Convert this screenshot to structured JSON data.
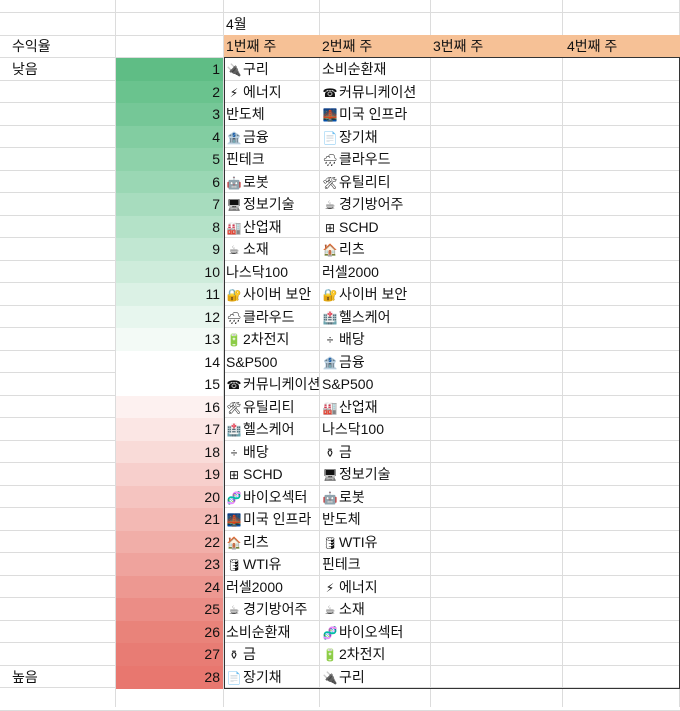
{
  "month_label": "4월",
  "return_label": "수익율",
  "low_label": "낮음",
  "high_label": "높음",
  "week_headers": [
    "1번째 주",
    "2번째 주",
    "3번째 주",
    "4번째 주"
  ],
  "colors": {
    "header_orange": "#f6c196",
    "gradient_top": "#5fbd85",
    "gradient_bottom": "#e8776f"
  },
  "ranks": [
    {
      "rank": 1,
      "color": "#5fbd85",
      "w1": {
        "icon": "🔌",
        "text": "구리"
      },
      "w2": {
        "icon": "",
        "text": "소비순환재"
      }
    },
    {
      "rank": 2,
      "color": "#6ac38e",
      "w1": {
        "icon": "⚡",
        "text": "에너지"
      },
      "w2": {
        "icon": "☎",
        "text": "커뮤니케이션"
      }
    },
    {
      "rank": 3,
      "color": "#75c797",
      "w1": {
        "icon": "",
        "text": "반도체"
      },
      "w2": {
        "icon": "🌉",
        "text": "미국 인프라"
      }
    },
    {
      "rank": 4,
      "color": "#82cda1",
      "w1": {
        "icon": "🏦",
        "text": "금융"
      },
      "w2": {
        "icon": "📄",
        "text": "장기채"
      }
    },
    {
      "rank": 5,
      "color": "#8ed2aa",
      "w1": {
        "icon": "",
        "text": "핀테크"
      },
      "w2": {
        "icon": "🌧",
        "text": "클라우드"
      }
    },
    {
      "rank": 6,
      "color": "#9ad7b4",
      "w1": {
        "icon": "🤖",
        "text": "로봇"
      },
      "w2": {
        "icon": "🛠",
        "text": "유틸리티"
      }
    },
    {
      "rank": 7,
      "color": "#a7dcbe",
      "w1": {
        "icon": "🖥",
        "text": "정보기술"
      },
      "w2": {
        "icon": "☕",
        "text": "경기방어주"
      }
    },
    {
      "rank": 8,
      "color": "#b4e2c8",
      "w1": {
        "icon": "🏭",
        "text": "산업재"
      },
      "w2": {
        "icon": "⊞",
        "text": "SCHD"
      }
    },
    {
      "rank": 9,
      "color": "#c1e7d2",
      "w1": {
        "icon": "☕",
        "text": "소재"
      },
      "w2": {
        "icon": "🏠",
        "text": "리츠"
      }
    },
    {
      "rank": 10,
      "color": "#ceecdb",
      "w1": {
        "icon": "",
        "text": "나스닥100"
      },
      "w2": {
        "icon": "",
        "text": "러셀2000"
      }
    },
    {
      "rank": 11,
      "color": "#dbf1e5",
      "w1": {
        "icon": "🔐",
        "text": "사이버 보안"
      },
      "w2": {
        "icon": "🔐",
        "text": "사이버 보안"
      }
    },
    {
      "rank": 12,
      "color": "#e7f6ee",
      "w1": {
        "icon": "🌧",
        "text": "클라우드"
      },
      "w2": {
        "icon": "🏥",
        "text": "헬스케어"
      }
    },
    {
      "rank": 13,
      "color": "#f3faf6",
      "w1": {
        "icon": "🔋",
        "text": "2차전지"
      },
      "w2": {
        "icon": "÷",
        "text": "배당"
      }
    },
    {
      "rank": 14,
      "color": "#ffffff",
      "w1": {
        "icon": "",
        "text": "S&P500"
      },
      "w2": {
        "icon": "🏦",
        "text": "금융"
      }
    },
    {
      "rank": 15,
      "color": "#ffffff",
      "w1": {
        "icon": "☎",
        "text": "커뮤니케이션"
      },
      "w2": {
        "icon": "",
        "text": "S&P500"
      }
    },
    {
      "rank": 16,
      "color": "#fdf1f0",
      "w1": {
        "icon": "🛠",
        "text": "유틸리티"
      },
      "w2": {
        "icon": "🏭",
        "text": "산업재"
      }
    },
    {
      "rank": 17,
      "color": "#fbe6e4",
      "w1": {
        "icon": "🏥",
        "text": "헬스케어"
      },
      "w2": {
        "icon": "",
        "text": "나스닥100"
      }
    },
    {
      "rank": 18,
      "color": "#f9dbd8",
      "w1": {
        "icon": "÷",
        "text": "배당"
      },
      "w2": {
        "icon": "⚱",
        "text": "금"
      }
    },
    {
      "rank": 19,
      "color": "#f7cfcc",
      "w1": {
        "icon": "⊞",
        "text": "SCHD"
      },
      "w2": {
        "icon": "🖥",
        "text": "정보기술"
      }
    },
    {
      "rank": 20,
      "color": "#f5c4c0",
      "w1": {
        "icon": "🧬",
        "text": "바이오섹터"
      },
      "w2": {
        "icon": "🤖",
        "text": "로봇"
      }
    },
    {
      "rank": 21,
      "color": "#f3b9b4",
      "w1": {
        "icon": "🌉",
        "text": "미국 인프라"
      },
      "w2": {
        "icon": "",
        "text": "반도체"
      }
    },
    {
      "rank": 22,
      "color": "#f1aea8",
      "w1": {
        "icon": "🏠",
        "text": "리츠"
      },
      "w2": {
        "icon": "🛢",
        "text": "WTI유"
      }
    },
    {
      "rank": 23,
      "color": "#efa39d",
      "w1": {
        "icon": "🛢",
        "text": "WTI유"
      },
      "w2": {
        "icon": "",
        "text": "핀테크"
      }
    },
    {
      "rank": 24,
      "color": "#ed9891",
      "w1": {
        "icon": "",
        "text": "러셀2000"
      },
      "w2": {
        "icon": "⚡",
        "text": "에너지"
      }
    },
    {
      "rank": 25,
      "color": "#eb8d86",
      "w1": {
        "icon": "☕",
        "text": "경기방어주"
      },
      "w2": {
        "icon": "☕",
        "text": "소재"
      }
    },
    {
      "rank": 26,
      "color": "#e9837a",
      "w1": {
        "icon": "",
        "text": "소비순환재"
      },
      "w2": {
        "icon": "🧬",
        "text": "바이오섹터"
      }
    },
    {
      "rank": 27,
      "color": "#e87c74",
      "w1": {
        "icon": "⚱",
        "text": "금"
      },
      "w2": {
        "icon": "🔋",
        "text": "2차전지"
      }
    },
    {
      "rank": 28,
      "color": "#e8776f",
      "w1": {
        "icon": "📄",
        "text": "장기채"
      },
      "w2": {
        "icon": "🔌",
        "text": "구리"
      }
    }
  ]
}
